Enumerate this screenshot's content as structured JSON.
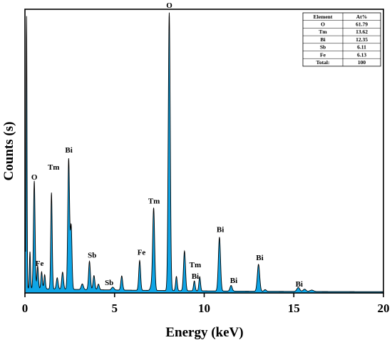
{
  "chart_data": {
    "type": "area",
    "title": "",
    "xlabel": "Energy (keV)",
    "ylabel": "Counts (s)",
    "xlim": [
      0,
      20
    ],
    "ylim": [
      0,
      100
    ],
    "x_ticks": [
      "0",
      "5",
      "10",
      "15",
      "20"
    ],
    "show_y_tick_labels": false,
    "grid": false,
    "fill_color": "#0ea5e6",
    "line_color": "#000000",
    "baseline": 1.3,
    "peaks": [
      {
        "x": 0.09,
        "height": 96,
        "width": 0.025
      },
      {
        "x": 0.28,
        "height": 13,
        "width": 0.03
      },
      {
        "x": 0.52,
        "height": 38,
        "width": 0.045
      },
      {
        "x": 0.71,
        "height": 8,
        "width": 0.04
      },
      {
        "x": 0.93,
        "height": 6,
        "width": 0.04
      },
      {
        "x": 1.1,
        "height": 5,
        "width": 0.04
      },
      {
        "x": 1.48,
        "height": 34,
        "width": 0.04
      },
      {
        "x": 1.8,
        "height": 4,
        "width": 0.05
      },
      {
        "x": 2.1,
        "height": 6,
        "width": 0.05
      },
      {
        "x": 2.44,
        "height": 46,
        "width": 0.05
      },
      {
        "x": 2.58,
        "height": 22,
        "width": 0.045
      },
      {
        "x": 3.2,
        "height": 2,
        "width": 0.06
      },
      {
        "x": 3.6,
        "height": 10,
        "width": 0.05
      },
      {
        "x": 3.85,
        "height": 5,
        "width": 0.05
      },
      {
        "x": 4.1,
        "height": 2,
        "width": 0.05
      },
      {
        "x": 4.9,
        "height": 1,
        "width": 0.07
      },
      {
        "x": 5.4,
        "height": 5,
        "width": 0.05
      },
      {
        "x": 6.4,
        "height": 10.5,
        "width": 0.05
      },
      {
        "x": 7.05,
        "height": 1.5,
        "width": 0.06
      },
      {
        "x": 7.18,
        "height": 29,
        "width": 0.055
      },
      {
        "x": 8.05,
        "height": 98,
        "width": 0.055
      },
      {
        "x": 8.45,
        "height": 5,
        "width": 0.045
      },
      {
        "x": 8.9,
        "height": 14,
        "width": 0.055
      },
      {
        "x": 9.45,
        "height": 3.5,
        "width": 0.045
      },
      {
        "x": 9.75,
        "height": 5,
        "width": 0.045
      },
      {
        "x": 10.85,
        "height": 19,
        "width": 0.06
      },
      {
        "x": 11.5,
        "height": 2,
        "width": 0.06
      },
      {
        "x": 13.03,
        "height": 9.5,
        "width": 0.065
      },
      {
        "x": 13.4,
        "height": 0.6,
        "width": 0.06
      },
      {
        "x": 15.25,
        "height": 1.4,
        "width": 0.08
      },
      {
        "x": 15.6,
        "height": 0.8,
        "width": 0.08
      },
      {
        "x": 16.0,
        "height": 0.5,
        "width": 0.1
      }
    ],
    "annotations": [
      {
        "label": "O",
        "x": 0.52,
        "y": 40
      },
      {
        "label": "Fe",
        "x": 0.82,
        "y": 9.5
      },
      {
        "label": "Tm",
        "x": 1.6,
        "y": 43.5
      },
      {
        "label": "Bi",
        "x": 2.45,
        "y": 49.5
      },
      {
        "label": "Sb",
        "x": 3.75,
        "y": 12.5
      },
      {
        "label": "Sb",
        "x": 4.7,
        "y": 2.8
      },
      {
        "label": "Fe",
        "x": 6.5,
        "y": 13.5
      },
      {
        "label": "Tm",
        "x": 7.2,
        "y": 31.5
      },
      {
        "label": "O",
        "x": 8.05,
        "y": 100.5
      },
      {
        "label": "Tm",
        "x": 9.5,
        "y": 9
      },
      {
        "label": "Bi",
        "x": 9.5,
        "y": 5
      },
      {
        "label": "Bi",
        "x": 10.9,
        "y": 21.5
      },
      {
        "label": "Bi",
        "x": 11.65,
        "y": 3.5
      },
      {
        "label": "Bi",
        "x": 13.1,
        "y": 11.5
      },
      {
        "label": "Bi",
        "x": 15.3,
        "y": 2.3
      }
    ],
    "table": {
      "headers": [
        "Element",
        "At%"
      ],
      "rows": [
        [
          "O",
          "61.79"
        ],
        [
          "Tm",
          "13.62"
        ],
        [
          "Bi",
          "12.35"
        ],
        [
          "Sb",
          "6.11"
        ],
        [
          "Fe",
          "6.13"
        ],
        [
          "Total:",
          "100"
        ]
      ]
    }
  }
}
